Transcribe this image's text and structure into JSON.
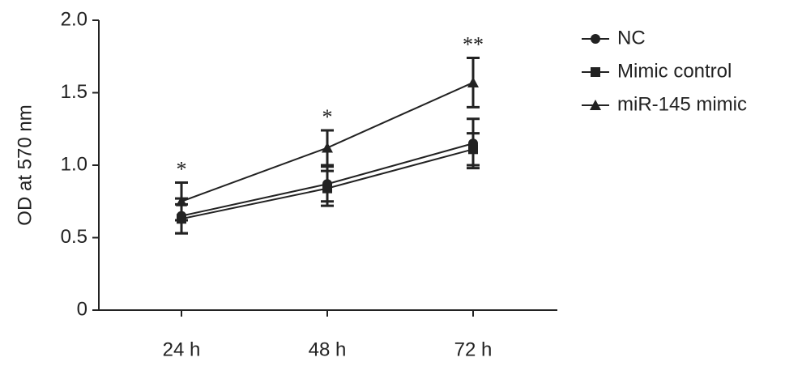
{
  "chart_data": {
    "type": "line",
    "y_label": "OD at 570 nm",
    "categories": [
      "24 h",
      "48 h",
      "72 h"
    ],
    "series": [
      {
        "name": "NC",
        "color": "#222222",
        "marker": "circle",
        "values": [
          0.65,
          0.87,
          1.15
        ],
        "errors": [
          0.12,
          0.12,
          0.17
        ]
      },
      {
        "name": "Mimic control",
        "color": "#222222",
        "marker": "square",
        "values": [
          0.63,
          0.84,
          1.11
        ],
        "errors": [
          0.1,
          0.12,
          0.11
        ]
      },
      {
        "name": "miR-145 mimic",
        "color": "#222222",
        "marker": "triangle",
        "values": [
          0.75,
          1.12,
          1.57
        ],
        "errors": [
          0.13,
          0.12,
          0.17
        ]
      }
    ],
    "annotations": [
      {
        "category": 0,
        "text": "*"
      },
      {
        "category": 1,
        "text": "*"
      },
      {
        "category": 2,
        "text": "**"
      }
    ],
    "ylim": [
      0,
      2
    ],
    "yticks": [
      0,
      {
        "value": 0.5,
        "label": "0.5"
      },
      {
        "value": 1,
        "label": "1.0"
      },
      {
        "value": 1.5,
        "label": "1.5"
      },
      {
        "value": 2,
        "label": "2.0"
      }
    ],
    "legend": "right"
  }
}
